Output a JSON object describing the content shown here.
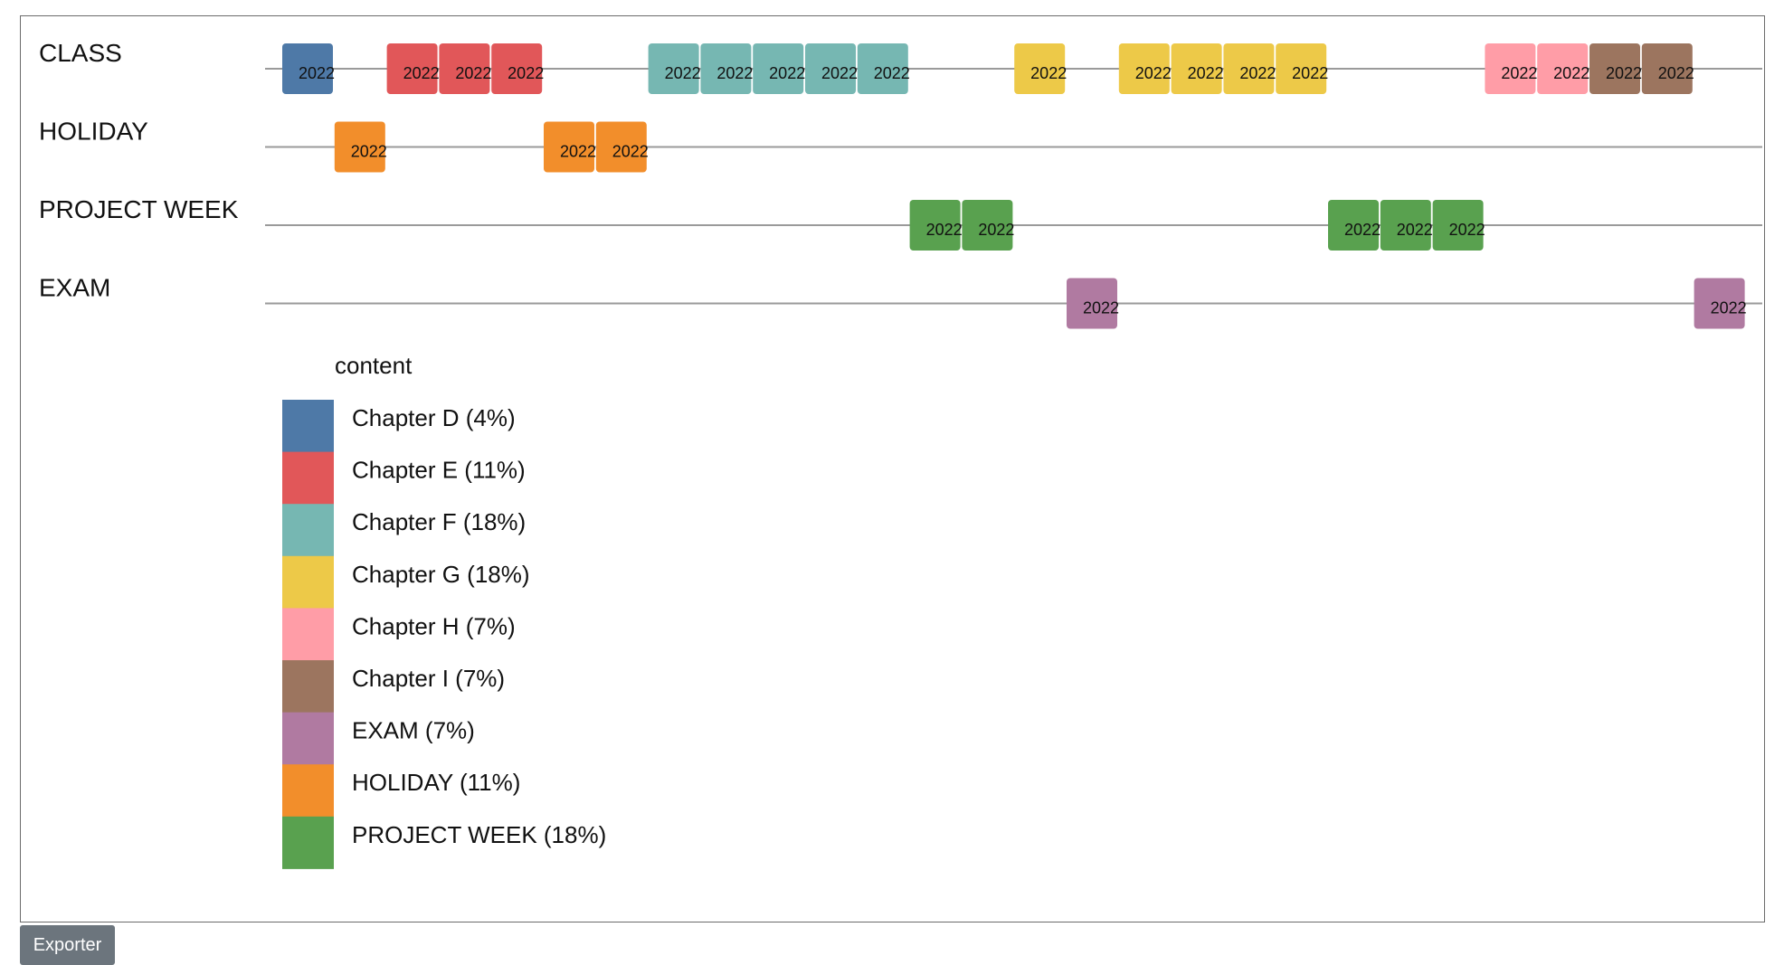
{
  "export_button": {
    "label": "Exporter"
  },
  "chart_data": {
    "type": "timeline",
    "rows": [
      "CLASS",
      "HOLIDAY",
      "PROJECT WEEK",
      "EXAM"
    ],
    "tile_label": "2022",
    "tiles": [
      {
        "row": "CLASS",
        "slot": 0,
        "category": "Chapter D"
      },
      {
        "row": "HOLIDAY",
        "slot": 1,
        "category": "HOLIDAY"
      },
      {
        "row": "CLASS",
        "slot": 2,
        "category": "Chapter E"
      },
      {
        "row": "CLASS",
        "slot": 3,
        "category": "Chapter E"
      },
      {
        "row": "CLASS",
        "slot": 4,
        "category": "Chapter E"
      },
      {
        "row": "HOLIDAY",
        "slot": 5,
        "category": "HOLIDAY"
      },
      {
        "row": "HOLIDAY",
        "slot": 6,
        "category": "HOLIDAY"
      },
      {
        "row": "CLASS",
        "slot": 7,
        "category": "Chapter F"
      },
      {
        "row": "CLASS",
        "slot": 8,
        "category": "Chapter F"
      },
      {
        "row": "CLASS",
        "slot": 9,
        "category": "Chapter F"
      },
      {
        "row": "CLASS",
        "slot": 10,
        "category": "Chapter F"
      },
      {
        "row": "CLASS",
        "slot": 11,
        "category": "Chapter F"
      },
      {
        "row": "PROJECT WEEK",
        "slot": 12,
        "category": "PROJECT WEEK"
      },
      {
        "row": "PROJECT WEEK",
        "slot": 13,
        "category": "PROJECT WEEK"
      },
      {
        "row": "CLASS",
        "slot": 14,
        "category": "Chapter G"
      },
      {
        "row": "EXAM",
        "slot": 15,
        "category": "EXAM"
      },
      {
        "row": "CLASS",
        "slot": 16,
        "category": "Chapter G"
      },
      {
        "row": "CLASS",
        "slot": 17,
        "category": "Chapter G"
      },
      {
        "row": "CLASS",
        "slot": 18,
        "category": "Chapter G"
      },
      {
        "row": "CLASS",
        "slot": 19,
        "category": "Chapter G"
      },
      {
        "row": "PROJECT WEEK",
        "slot": 20,
        "category": "PROJECT WEEK"
      },
      {
        "row": "PROJECT WEEK",
        "slot": 21,
        "category": "PROJECT WEEK"
      },
      {
        "row": "PROJECT WEEK",
        "slot": 22,
        "category": "PROJECT WEEK"
      },
      {
        "row": "CLASS",
        "slot": 23,
        "category": "Chapter H"
      },
      {
        "row": "CLASS",
        "slot": 24,
        "category": "Chapter H"
      },
      {
        "row": "CLASS",
        "slot": 25,
        "category": "Chapter I"
      },
      {
        "row": "CLASS",
        "slot": 26,
        "category": "Chapter I"
      },
      {
        "row": "EXAM",
        "slot": 27,
        "category": "EXAM"
      }
    ],
    "legend": {
      "title": "content",
      "position": "bottom-left",
      "items": [
        {
          "label": "Chapter D (4%)",
          "color": "#4e79a7"
        },
        {
          "label": "Chapter E (11%)",
          "color": "#e15759"
        },
        {
          "label": "Chapter F (18%)",
          "color": "#76b7b2"
        },
        {
          "label": "Chapter G (18%)",
          "color": "#edc948"
        },
        {
          "label": "Chapter H (7%)",
          "color": "#ff9da7"
        },
        {
          "label": "Chapter I (7%)",
          "color": "#9c755f"
        },
        {
          "label": "EXAM (7%)",
          "color": "#b07aa1"
        },
        {
          "label": "HOLIDAY (11%)",
          "color": "#f28e2b"
        },
        {
          "label": "PROJECT WEEK (18%)",
          "color": "#59a14f"
        }
      ]
    },
    "category_colors": {
      "Chapter D": "#4e79a7",
      "Chapter E": "#e15759",
      "Chapter F": "#76b7b2",
      "Chapter G": "#edc948",
      "Chapter H": "#ff9da7",
      "Chapter I": "#9c755f",
      "EXAM": "#b07aa1",
      "HOLIDAY": "#f28e2b",
      "PROJECT WEEK": "#59a14f"
    }
  }
}
